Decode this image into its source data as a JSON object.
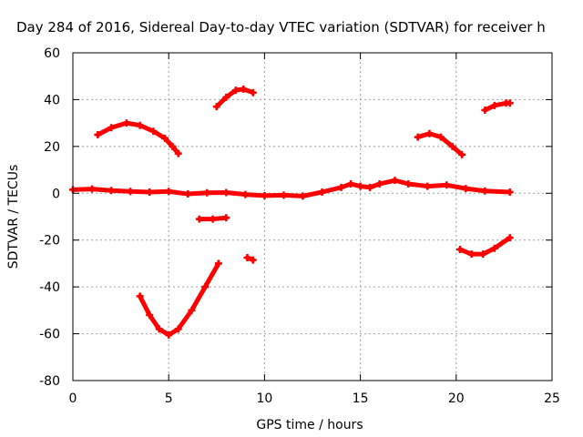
{
  "chart_data": {
    "type": "scatter",
    "title": "Day 284 of 2016, Sidereal Day-to-day VTEC variation (SDTVAR) for receiver h",
    "xlabel": "GPS time / hours",
    "ylabel": "SDTVAR / TECUs",
    "xlim": [
      0,
      25
    ],
    "ylim": [
      -80,
      60
    ],
    "xticks": [
      "0",
      "5",
      "10",
      "15",
      "20",
      "25"
    ],
    "yticks": [
      "-80",
      "-60",
      "-40",
      "-20",
      "0",
      "20",
      "40",
      "60"
    ],
    "grid": true,
    "series_color": "#ff0000",
    "series": [
      {
        "values": [
          [
            0.0,
            1.5
          ],
          [
            1.0,
            1.8
          ],
          [
            2.0,
            1.2
          ],
          [
            3.0,
            0.8
          ],
          [
            4.0,
            0.5
          ],
          [
            5.0,
            0.8
          ],
          [
            6.0,
            -0.3
          ],
          [
            7.0,
            0.2
          ],
          [
            8.0,
            0.3
          ],
          [
            9.0,
            -0.5
          ],
          [
            10.0,
            -1.0
          ],
          [
            11.0,
            -0.8
          ],
          [
            12.0,
            -1.2
          ],
          [
            13.0,
            0.5
          ],
          [
            14.0,
            2.5
          ],
          [
            14.5,
            4.0
          ],
          [
            15.0,
            3.0
          ],
          [
            15.5,
            2.5
          ],
          [
            16.0,
            4.0
          ],
          [
            16.8,
            5.5
          ],
          [
            17.5,
            4.0
          ],
          [
            18.5,
            3.0
          ],
          [
            19.5,
            3.5
          ],
          [
            20.5,
            2.0
          ],
          [
            21.5,
            1.0
          ],
          [
            22.8,
            0.5
          ]
        ]
      },
      {
        "values": [
          [
            1.3,
            25
          ],
          [
            2.0,
            28
          ],
          [
            2.8,
            30
          ],
          [
            3.5,
            29
          ],
          [
            4.2,
            26.5
          ],
          [
            4.8,
            23.5
          ],
          [
            5.2,
            20
          ],
          [
            5.5,
            17
          ]
        ]
      },
      {
        "values": [
          [
            7.5,
            37
          ],
          [
            8.0,
            41
          ],
          [
            8.5,
            44
          ],
          [
            8.9,
            44.5
          ],
          [
            9.4,
            43
          ]
        ]
      },
      {
        "values": [
          [
            6.6,
            -11
          ],
          [
            7.3,
            -11
          ],
          [
            8.0,
            -10.5
          ]
        ]
      },
      {
        "values": [
          [
            9.1,
            -27.5
          ],
          [
            9.4,
            -28.5
          ]
        ]
      },
      {
        "values": [
          [
            3.5,
            -44
          ],
          [
            4.0,
            -52
          ],
          [
            4.5,
            -58
          ],
          [
            5.0,
            -60.5
          ],
          [
            5.5,
            -58
          ],
          [
            6.2,
            -50
          ],
          [
            6.9,
            -40
          ],
          [
            7.6,
            -30
          ]
        ]
      },
      {
        "values": [
          [
            18.0,
            24
          ],
          [
            18.6,
            25.5
          ],
          [
            19.2,
            24
          ],
          [
            19.8,
            20
          ],
          [
            20.3,
            16.5
          ]
        ]
      },
      {
        "values": [
          [
            21.5,
            35.5
          ],
          [
            22.0,
            37.5
          ],
          [
            22.6,
            38.5
          ],
          [
            22.8,
            38.5
          ]
        ]
      },
      {
        "values": [
          [
            20.2,
            -24
          ],
          [
            20.8,
            -26
          ],
          [
            21.4,
            -26
          ],
          [
            22.0,
            -23.5
          ],
          [
            22.8,
            -19
          ]
        ]
      }
    ]
  }
}
